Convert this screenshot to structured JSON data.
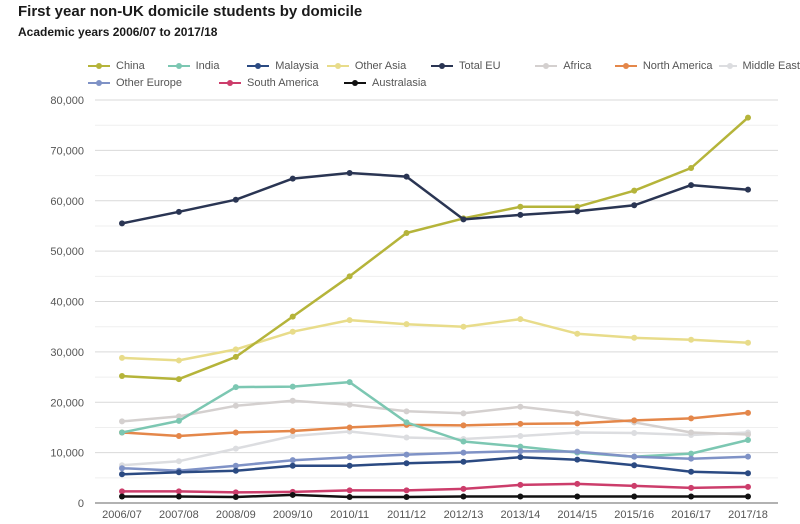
{
  "chart_data": {
    "type": "line",
    "title": "First year non-UK domicile students by domicile",
    "subtitle": "Academic years 2006/07 to 2017/18",
    "xlabel": "",
    "ylabel": "",
    "ylim": [
      0,
      80000
    ],
    "yticks": [
      0,
      10000,
      20000,
      30000,
      40000,
      50000,
      60000,
      70000,
      80000
    ],
    "ytick_labels": [
      "0",
      "10,000",
      "20,000",
      "30,000",
      "40,000",
      "50,000",
      "60,000",
      "70,000",
      "80,000"
    ],
    "grid": true,
    "legend_position": "top",
    "categories": [
      "2006/07",
      "2007/08",
      "2008/09",
      "2009/10",
      "2010/11",
      "2011/12",
      "2012/13",
      "2013/14",
      "2014/15",
      "2015/16",
      "2016/17",
      "2017/18"
    ],
    "series": [
      {
        "name": "China",
        "color": "#b5b43a",
        "values": [
          25200,
          24600,
          29000,
          37000,
          45000,
          53600,
          56500,
          58800,
          58800,
          62000,
          66500,
          76500
        ]
      },
      {
        "name": "India",
        "color": "#7cc7b2",
        "values": [
          14000,
          16300,
          23000,
          23100,
          24000,
          16000,
          12200,
          11200,
          10000,
          9200,
          9800,
          12500
        ]
      },
      {
        "name": "Malaysia",
        "color": "#2b4a82",
        "values": [
          5700,
          6100,
          6400,
          7400,
          7400,
          7900,
          8200,
          9100,
          8600,
          7500,
          6200,
          5900
        ]
      },
      {
        "name": "Other Asia",
        "color": "#e8dc8a",
        "values": [
          28800,
          28300,
          30500,
          34000,
          36300,
          35500,
          35000,
          36500,
          33600,
          32800,
          32400,
          31800
        ]
      },
      {
        "name": "Total EU",
        "color": "#2a3553",
        "values": [
          55500,
          57800,
          60200,
          64400,
          65500,
          64800,
          56300,
          57200,
          57900,
          59100,
          63100,
          62200
        ]
      },
      {
        "name": "Africa",
        "color": "#d4d0cf",
        "values": [
          16200,
          17200,
          19300,
          20300,
          19500,
          18200,
          17800,
          19100,
          17800,
          16000,
          14000,
          13600
        ]
      },
      {
        "name": "North America",
        "color": "#e4874a",
        "values": [
          14000,
          13300,
          14000,
          14300,
          15000,
          15500,
          15400,
          15700,
          15800,
          16400,
          16800,
          17900
        ]
      },
      {
        "name": "Middle East",
        "color": "#dcdde0",
        "values": [
          7500,
          8300,
          10800,
          13300,
          14200,
          13000,
          12700,
          13300,
          14000,
          13900,
          13500,
          14000
        ]
      },
      {
        "name": "Other Europe",
        "color": "#7f92c6",
        "values": [
          6900,
          6400,
          7400,
          8500,
          9100,
          9600,
          10000,
          10300,
          10200,
          9200,
          8800,
          9200
        ]
      },
      {
        "name": "South America",
        "color": "#cc3d6b",
        "values": [
          2300,
          2300,
          2100,
          2200,
          2500,
          2500,
          2800,
          3600,
          3800,
          3400,
          3000,
          3200
        ]
      },
      {
        "name": "Australasia",
        "color": "#111111",
        "values": [
          1300,
          1300,
          1200,
          1600,
          1200,
          1200,
          1300,
          1300,
          1300,
          1300,
          1300,
          1300
        ]
      }
    ],
    "legend_rows": [
      [
        "China",
        "India",
        "Malaysia",
        "Other Asia",
        "Total EU",
        "Africa",
        "North America",
        "Middle East"
      ],
      [
        "Other Europe",
        "South America",
        "Australasia"
      ]
    ]
  }
}
